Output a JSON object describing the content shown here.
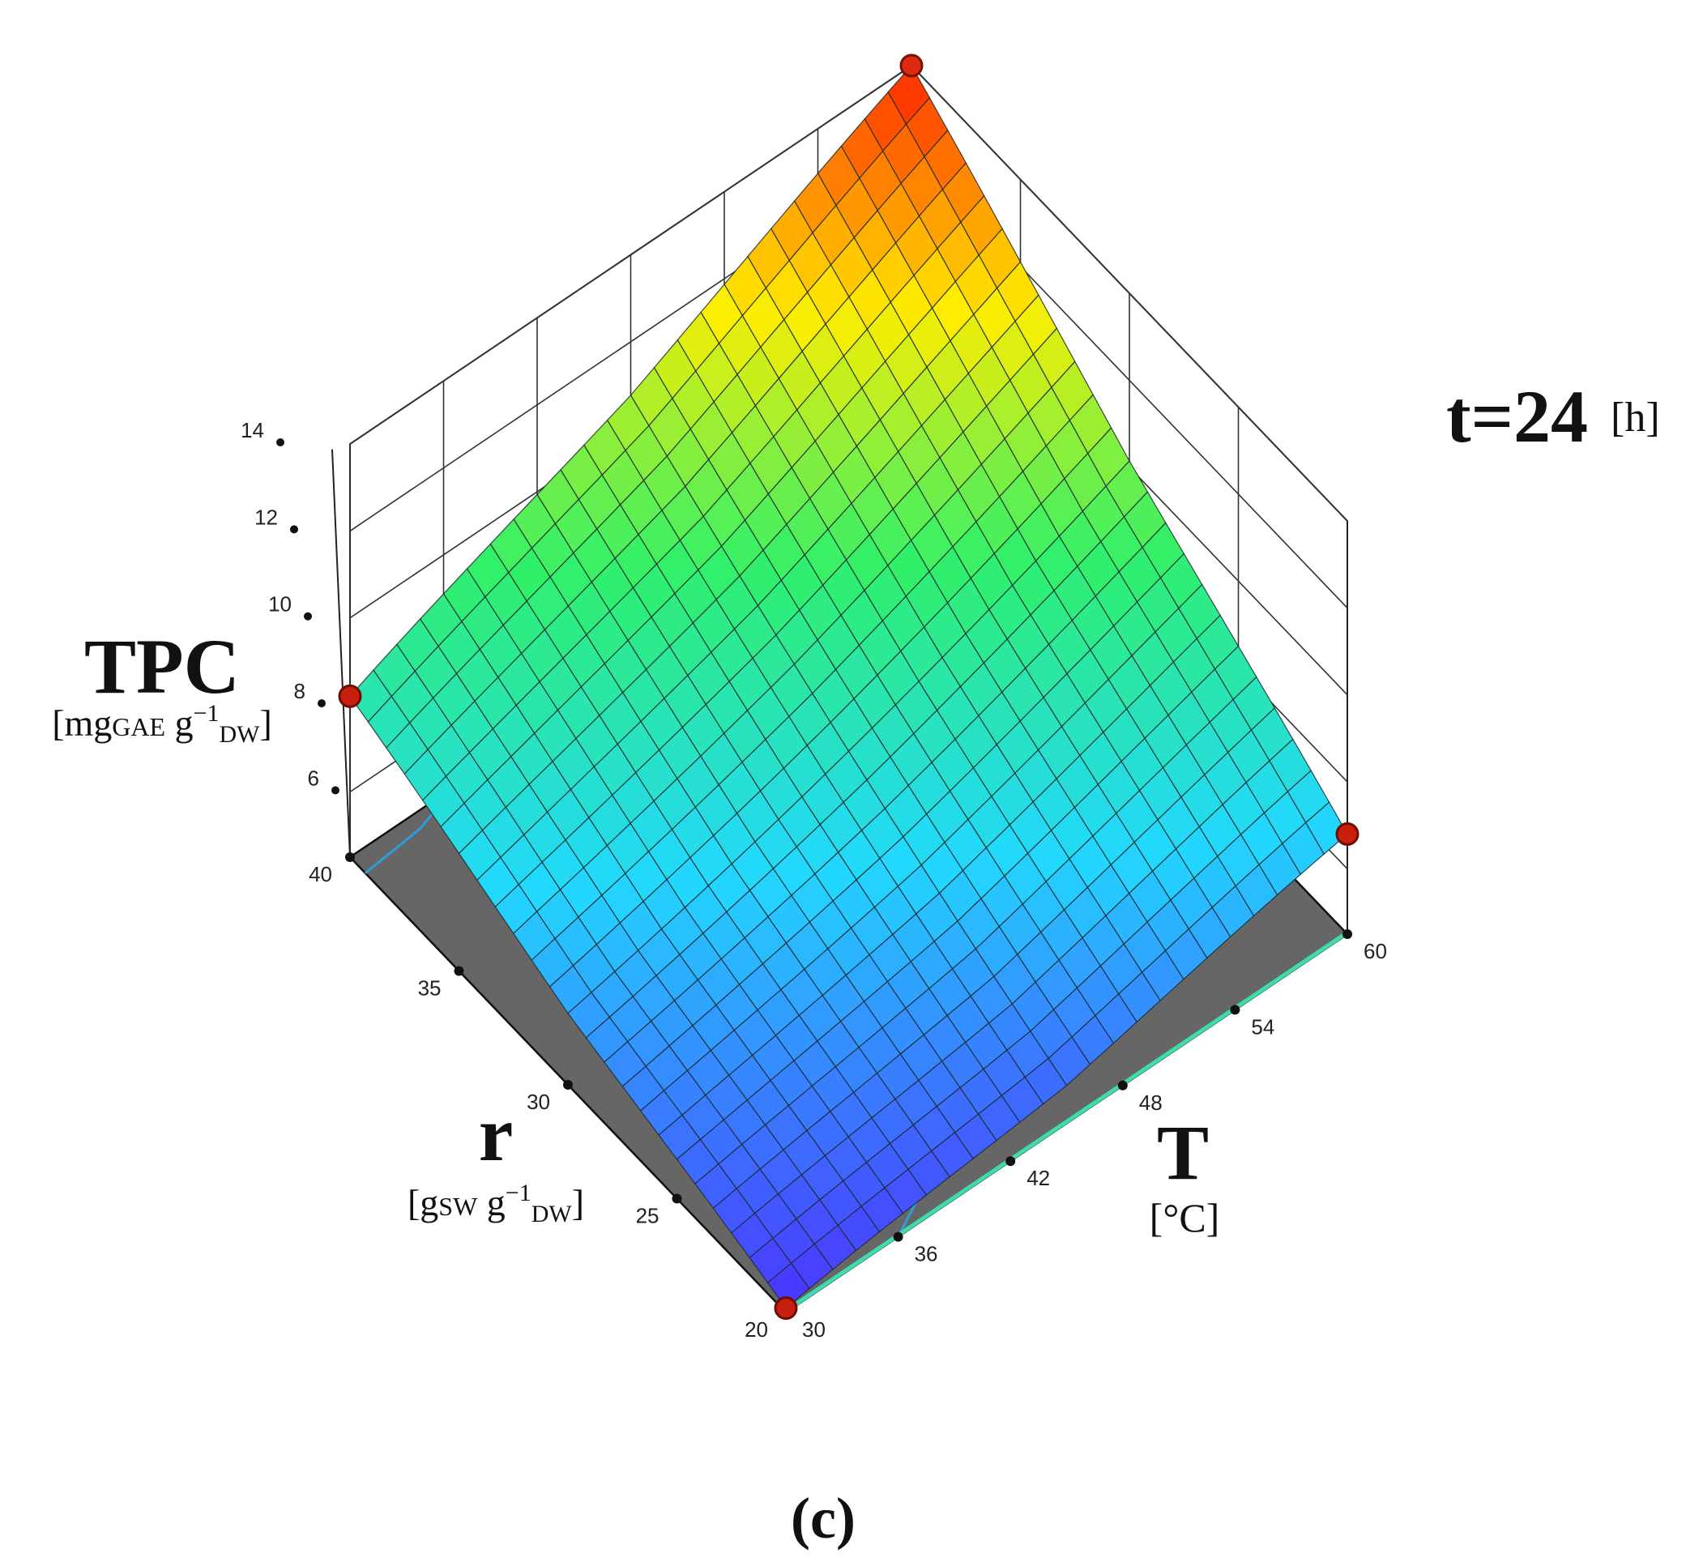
{
  "chart_data": {
    "type": "surface3d",
    "z_axis": {
      "label": "TPC",
      "unit_open": "[mg",
      "unit_sub1": "GAE",
      "unit_mid": " g",
      "unit_sup": "−1",
      "unit_sub2": "DW",
      "unit_close": "]",
      "ticks": [
        6,
        8,
        10,
        12,
        14
      ],
      "range": [
        4.5,
        14
      ]
    },
    "r_axis": {
      "label": "r",
      "unit_open": "[g",
      "unit_sub1": "SW",
      "unit_mid": " g",
      "unit_sup": "−1",
      "unit_sub2": "DW",
      "unit_close": "]",
      "ticks": [
        20,
        25,
        30,
        35,
        40
      ],
      "range": [
        20,
        40
      ]
    },
    "T_axis": {
      "label": "T",
      "unit": "[°C]",
      "ticks": [
        30,
        36,
        42,
        48,
        54,
        60
      ],
      "range": [
        30,
        60
      ]
    },
    "fixed_factor": {
      "name": "t=24",
      "unit": "[h]"
    },
    "corner_points": [
      {
        "T": 30,
        "r": 20,
        "TPC": 4.6
      },
      {
        "T": 30,
        "r": 40,
        "TPC": 8.2
      },
      {
        "T": 60,
        "r": 20,
        "TPC": 6.8
      },
      {
        "T": 60,
        "r": 40,
        "TPC": 14.0
      }
    ],
    "colorscale": [
      "#4b33ff",
      "#22d8ff",
      "#30f06a",
      "#ffee00",
      "#ff2200"
    ],
    "floor_color": "#666666",
    "grid": true
  },
  "caption": "(c)"
}
